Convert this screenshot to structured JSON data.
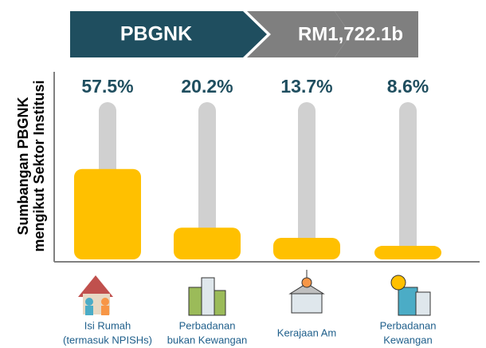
{
  "chart_data": {
    "type": "bar",
    "header": {
      "left": "PBGNK",
      "right": "RM1,722.1b"
    },
    "y_label": [
      "Sumbangan PBGNK",
      "mengikut Sektor Institusi"
    ],
    "categories": [
      [
        "Isi Rumah",
        "(termasuk NPISHs)"
      ],
      [
        "Perbadanan",
        "bukan Kewangan"
      ],
      [
        "Kerajaan Am"
      ],
      [
        "Perbadanan",
        "Kewangan"
      ]
    ],
    "values": [
      57.5,
      20.2,
      13.7,
      8.6
    ],
    "value_labels": [
      "57.5%",
      "20.2%",
      "13.7%",
      "8.6%"
    ],
    "color": "#ffc000",
    "track_color": "#d0d0d0",
    "label_color": "#1f4e5f",
    "ylim": [
      0,
      100
    ]
  }
}
